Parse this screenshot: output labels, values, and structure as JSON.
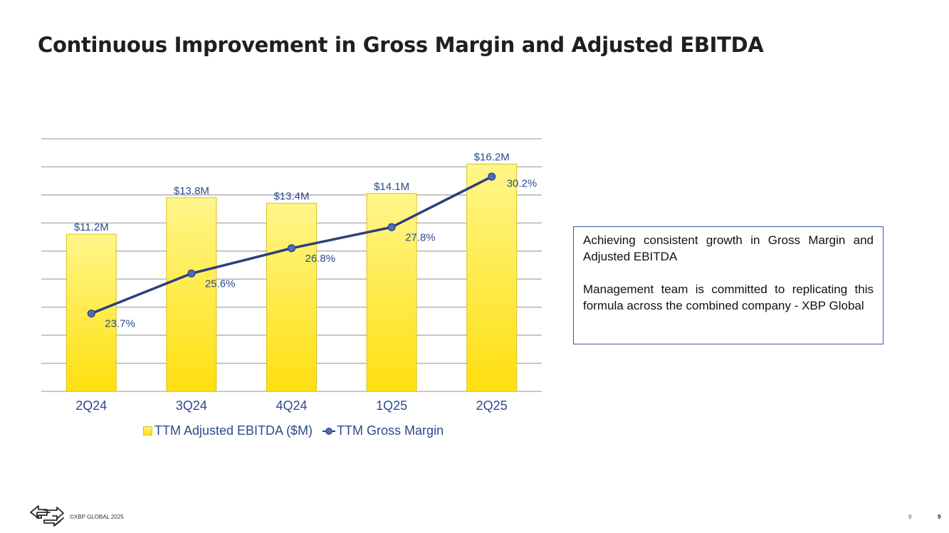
{
  "slide": {
    "title": "Continuous Improvement in Gross Margin and Adjusted EBITDA"
  },
  "chart_data": {
    "type": "bar",
    "categories": [
      "2Q24",
      "3Q24",
      "4Q24",
      "1Q25",
      "2Q25"
    ],
    "series": [
      {
        "name": "TTM Adjusted EBITDA ($M)",
        "type": "bar",
        "values": [
          11.2,
          13.8,
          13.4,
          14.1,
          16.2
        ],
        "labels": [
          "$11.2M",
          "$13.8M",
          "$13.4M",
          "$14.1M",
          "$16.2M"
        ]
      },
      {
        "name": "TTM Gross Margin",
        "type": "line",
        "values": [
          23.7,
          25.6,
          26.8,
          27.8,
          30.2
        ],
        "labels": [
          "23.7%",
          "25.6%",
          "26.8%",
          "27.8%",
          "30.2%"
        ]
      }
    ],
    "bar_ylim": [
      0,
      18
    ],
    "line_ylim": [
      20,
      32
    ],
    "grid": true,
    "legend_position": "bottom",
    "colors": {
      "bar_top": "#fff68a",
      "bar_bottom": "#ffdf0f",
      "bar_edge": "#d8c41c",
      "line": "#2e3f7a",
      "marker": "#4e6bc0",
      "gridline": "#b9b9b9",
      "label": "#2e4a8c"
    }
  },
  "callout": {
    "paragraph1": "Achieving consistent growth in Gross Margin and Adjusted EBITDA",
    "paragraph2": "Management team is committed to replicating this formula across the combined company - XBP Global"
  },
  "footer": {
    "logo_icon": "xbp-exchange-arrows-icon",
    "copyright": "©XBP GLOBAL 2025",
    "page_number": "9",
    "page_number_duplicate": "9"
  }
}
